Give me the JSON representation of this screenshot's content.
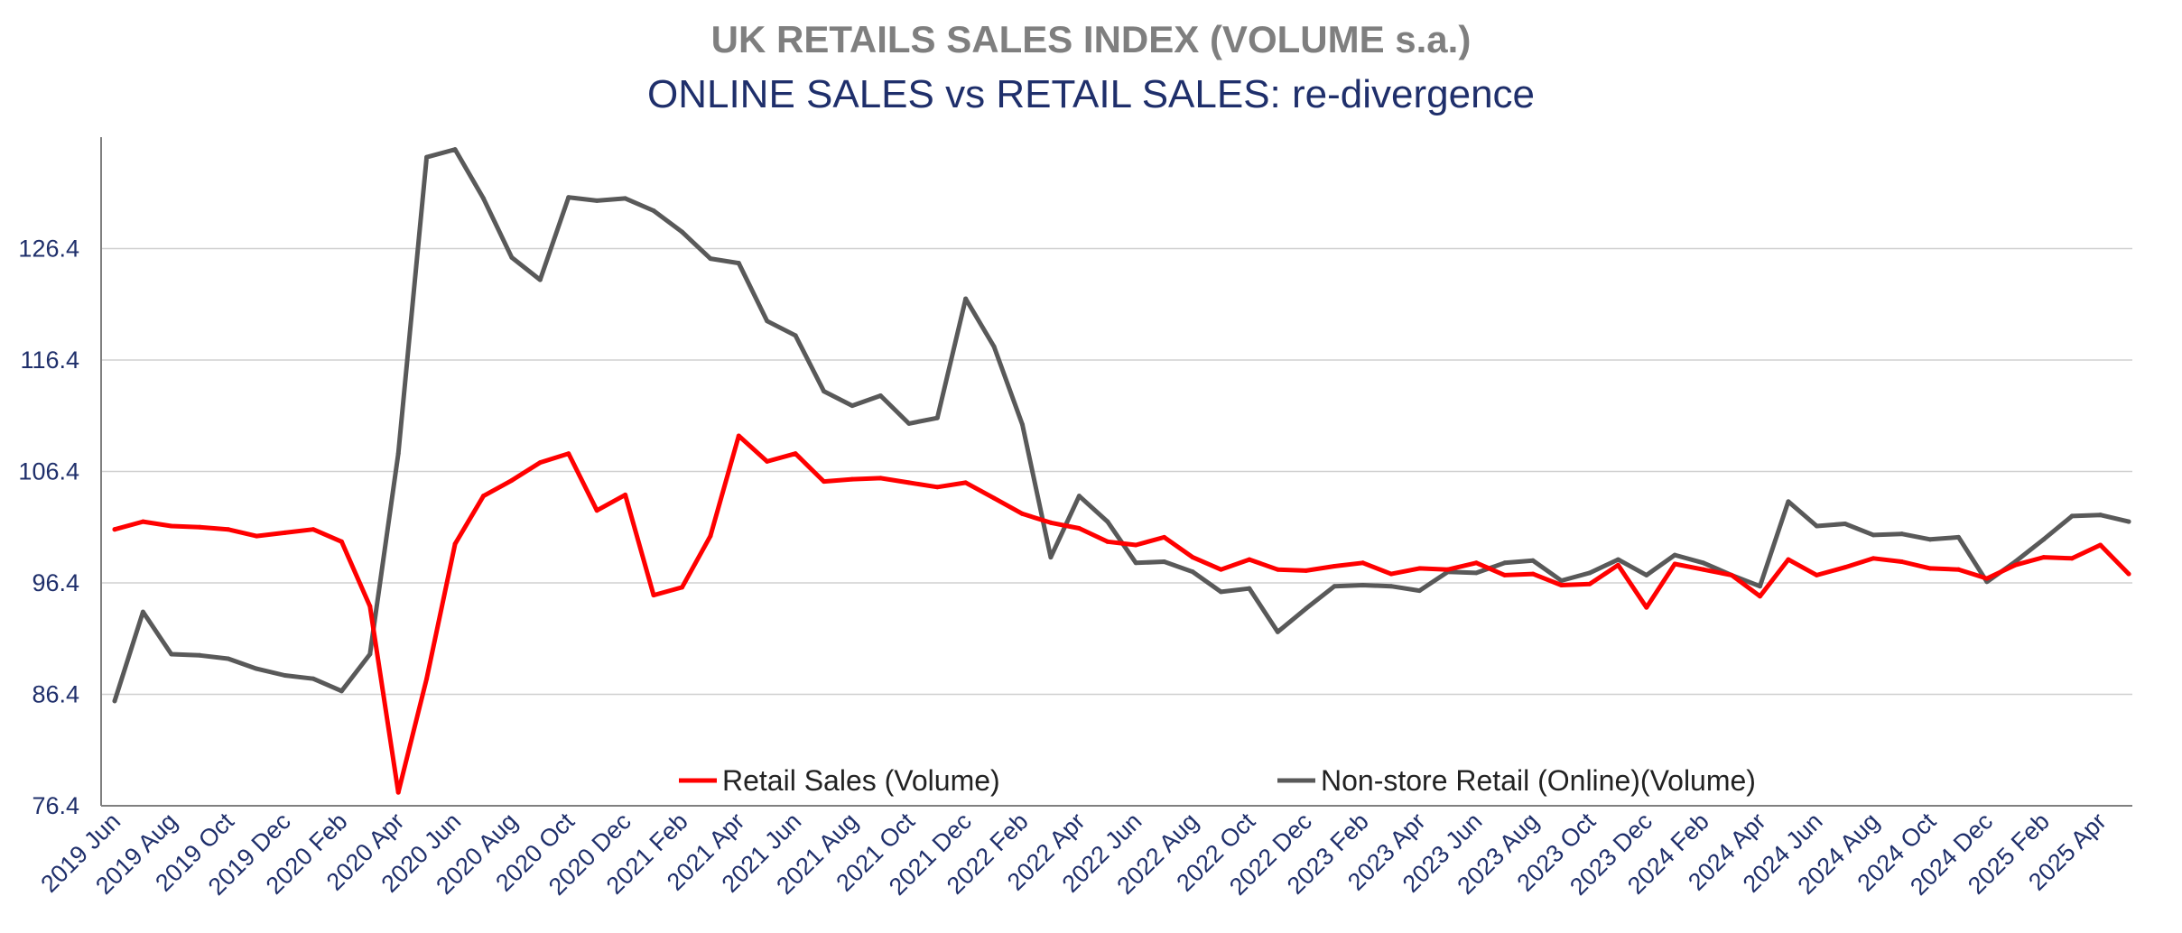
{
  "chart_data": {
    "type": "line",
    "title": "UK RETAILS SALES INDEX  (VOLUME s.a.)",
    "subtitle": "ONLINE SALES vs RETAIL SALES: re-divergence",
    "xlabel": "",
    "ylabel": "",
    "ylim": [
      76.4,
      136.4
    ],
    "yticks": [
      76.4,
      86.4,
      96.4,
      106.4,
      116.4,
      126.4
    ],
    "ytick_labels": [
      "76.4",
      "86.4",
      "96.4",
      "106.4",
      "116.4",
      "126.4"
    ],
    "grid": true,
    "legend_position": "bottom-center",
    "x": [
      "2019 Jun",
      "2019 Jul",
      "2019 Aug",
      "2019 Sep",
      "2019 Oct",
      "2019 Nov",
      "2019 Dec",
      "2020 Jan",
      "2020 Feb",
      "2020 Mar",
      "2020 Apr",
      "2020 May",
      "2020 Jun",
      "2020 Jul",
      "2020 Aug",
      "2020 Sep",
      "2020 Oct",
      "2020 Nov",
      "2020 Dec",
      "2021 Jan",
      "2021 Feb",
      "2021 Mar",
      "2021 Apr",
      "2021 May",
      "2021 Jun",
      "2021 Jul",
      "2021 Aug",
      "2021 Sep",
      "2021 Oct",
      "2021 Nov",
      "2021 Dec",
      "2022 Jan",
      "2022 Feb",
      "2022 Mar",
      "2022 Apr",
      "2022 May",
      "2022 Jun",
      "2022 Jul",
      "2022 Aug",
      "2022 Sep",
      "2022 Oct",
      "2022 Nov",
      "2022 Dec",
      "2023 Jan",
      "2023 Feb",
      "2023 Mar",
      "2023 Apr",
      "2023 May",
      "2023 Jun",
      "2023 Jul",
      "2023 Aug",
      "2023 Sep",
      "2023 Oct",
      "2023 Nov",
      "2023 Dec",
      "2024 Jan",
      "2024 Feb",
      "2024 Mar",
      "2024 Apr",
      "2024 May",
      "2024 Jun",
      "2024 Jul",
      "2024 Aug",
      "2024 Sep",
      "2024 Oct",
      "2024 Nov",
      "2024 Dec",
      "2025 Jan",
      "2025 Feb",
      "2025 Mar",
      "2025 Apr",
      "2025 May"
    ],
    "x_tick_labels": [
      "2019 Jun",
      "2019 Aug",
      "2019 Oct",
      "2019 Dec",
      "2020 Feb",
      "2020 Apr",
      "2020 Jun",
      "2020 Aug",
      "2020 Oct",
      "2020 Dec",
      "2021 Feb",
      "2021 Apr",
      "2021 Jun",
      "2021 Aug",
      "2021 Oct",
      "2021 Dec",
      "2022 Feb",
      "2022 Apr",
      "2022 Jun",
      "2022 Aug",
      "2022 Oct",
      "2022 Dec",
      "2023 Feb",
      "2023 Apr",
      "2023 Jun",
      "2023 Aug",
      "2023 Oct",
      "2023 Dec",
      "2024 Feb",
      "2024 Apr",
      "2024 Jun",
      "2024 Aug",
      "2024 Oct",
      "2024 Dec",
      "2025 Feb",
      "2025 Apr"
    ],
    "series": [
      {
        "name": "Retail Sales (Volume)",
        "color": "#ff0000",
        "values": [
          101.2,
          101.9,
          101.5,
          101.4,
          101.2,
          100.6,
          100.9,
          101.2,
          100.1,
          94.3,
          77.6,
          87.8,
          99.9,
          104.2,
          105.6,
          107.2,
          108.0,
          102.9,
          104.3,
          95.3,
          96.0,
          100.6,
          109.6,
          107.3,
          108.0,
          105.5,
          105.7,
          105.8,
          105.4,
          105.0,
          105.4,
          104.0,
          102.6,
          101.8,
          101.3,
          100.1,
          99.8,
          100.5,
          98.7,
          97.6,
          98.5,
          97.6,
          97.5,
          97.9,
          98.2,
          97.2,
          97.7,
          97.6,
          98.2,
          97.1,
          97.2,
          96.2,
          96.3,
          98.0,
          94.2,
          98.1,
          97.6,
          97.1,
          95.2,
          98.5,
          97.1,
          97.8,
          98.6,
          98.3,
          97.7,
          97.6,
          96.8,
          98.0,
          98.7,
          98.6,
          99.8,
          97.2
        ]
      },
      {
        "name": "Non-store Retail (Online)(Volume)",
        "color": "#595959",
        "values": [
          85.8,
          93.8,
          90.0,
          89.9,
          89.6,
          88.7,
          88.1,
          87.8,
          86.7,
          90.0,
          108.0,
          134.6,
          135.3,
          130.9,
          125.6,
          123.6,
          131.0,
          130.7,
          130.9,
          129.8,
          127.9,
          125.5,
          125.1,
          119.9,
          118.6,
          113.6,
          112.3,
          113.2,
          110.7,
          111.2,
          121.9,
          117.6,
          110.6,
          98.7,
          104.2,
          101.9,
          98.2,
          98.3,
          97.4,
          95.6,
          95.9,
          92.0,
          94.1,
          96.1,
          96.2,
          96.1,
          95.7,
          97.4,
          97.3,
          98.2,
          98.4,
          96.6,
          97.3,
          98.5,
          97.1,
          98.9,
          98.2,
          97.1,
          96.1,
          103.7,
          101.5,
          101.7,
          100.7,
          100.8,
          100.3,
          100.5,
          96.5,
          98.3,
          100.3,
          102.4,
          102.5,
          101.9
        ]
      }
    ]
  }
}
